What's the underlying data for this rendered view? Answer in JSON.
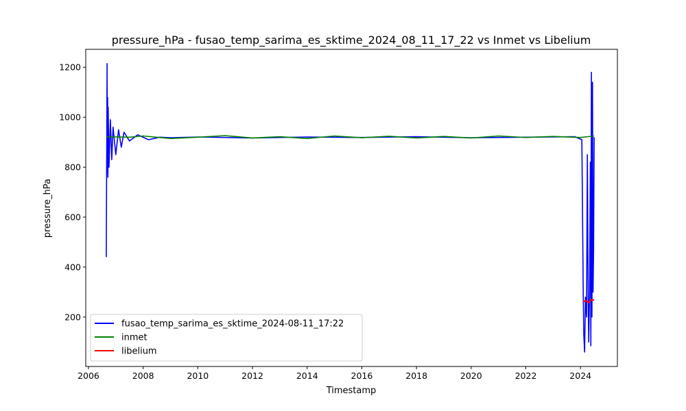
{
  "chart_data": {
    "type": "line",
    "title": "pressure_hPa - fusao_temp_sarima_es_sktime_2024_08_11_17_22 vs Inmet vs Libelium",
    "xlabel": "Timestamp",
    "ylabel": "pressure_hPa",
    "xlim": [
      2005.9,
      2025.35
    ],
    "ylim": [
      2,
      1272
    ],
    "xticks": [
      2006,
      2008,
      2010,
      2012,
      2014,
      2016,
      2018,
      2020,
      2022,
      2024
    ],
    "yticks": [
      200,
      400,
      600,
      800,
      1000,
      1200
    ],
    "grid": false,
    "legend_position": "lower-left",
    "series": [
      {
        "name": "fusao_temp_sarima_es_sktime_2024-08-11_17:22",
        "color": "#0000ff",
        "x": [
          2006.65,
          2006.66,
          2006.67,
          2006.68,
          2006.69,
          2006.7,
          2006.71,
          2006.72,
          2006.75,
          2006.8,
          2006.85,
          2006.9,
          2007.0,
          2007.1,
          2007.2,
          2007.3,
          2007.5,
          2007.8,
          2008.2,
          2008.6,
          2009.0,
          2010.0,
          2012.0,
          2014.0,
          2016.0,
          2018.0,
          2020.0,
          2022.0,
          2023.8,
          2024.05,
          2024.1,
          2024.12,
          2024.15,
          2024.18,
          2024.22,
          2024.25,
          2024.28,
          2024.3,
          2024.33,
          2024.36,
          2024.38,
          2024.4,
          2024.42,
          2024.44,
          2024.46,
          2024.48,
          2024.5
        ],
        "y": [
          440,
          700,
          920,
          1215,
          780,
          1080,
          760,
          1040,
          800,
          990,
          830,
          960,
          850,
          950,
          880,
          940,
          905,
          930,
          910,
          920,
          918,
          921,
          917,
          921,
          919,
          922,
          918,
          920,
          922,
          910,
          300,
          130,
          60,
          280,
          200,
          850,
          270,
          100,
          300,
          820,
          85,
          1180,
          200,
          1140,
          300,
          470,
          920
        ]
      },
      {
        "name": "inmet",
        "color": "#008000",
        "x": [
          2006.65,
          2007.5,
          2008.0,
          2009.0,
          2010.0,
          2011.0,
          2012.0,
          2013.0,
          2014.0,
          2015.0,
          2016.0,
          2017.0,
          2018.0,
          2019.0,
          2020.0,
          2021.0,
          2022.0,
          2023.0,
          2024.0,
          2024.5
        ],
        "y": [
          922,
          920,
          925,
          915,
          920,
          926,
          917,
          922,
          915,
          925,
          918,
          924,
          917,
          923,
          917,
          925,
          919,
          923,
          919,
          925
        ]
      },
      {
        "name": "libelium",
        "color": "#ff0000",
        "x": [
          2024.1,
          2024.2,
          2024.3,
          2024.4,
          2024.5
        ],
        "y": [
          262,
          265,
          258,
          270,
          268
        ]
      }
    ]
  }
}
